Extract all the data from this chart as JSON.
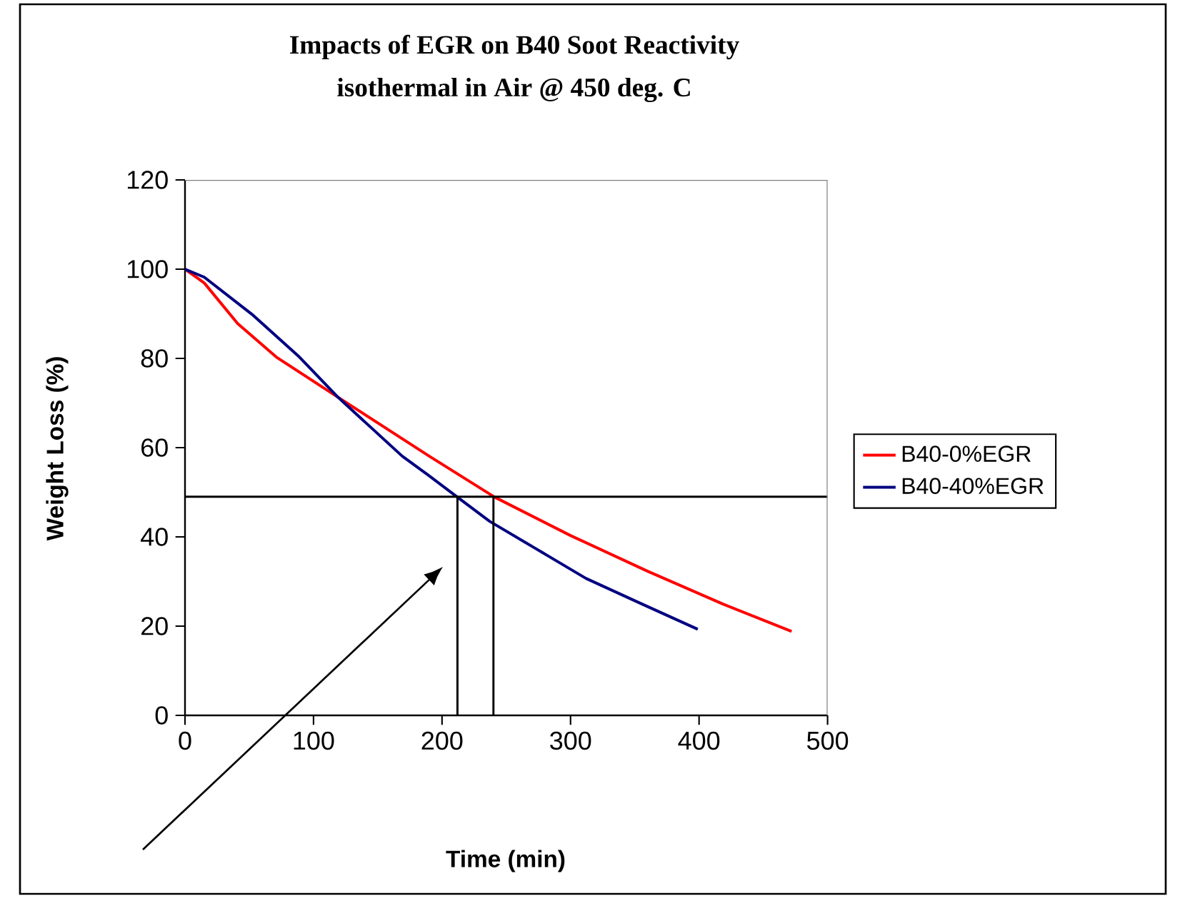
{
  "chart_data": {
    "type": "line",
    "title": "Impacts of EGR on B40 Soot Reactivity",
    "subtitle": "isothermal in Air @ 450 deg. C",
    "xlabel": "Time (min)",
    "ylabel": "Weight Loss (%)",
    "xlim": [
      0,
      500
    ],
    "xticks": [
      0,
      100,
      200,
      300,
      400,
      500
    ],
    "ylim": [
      0,
      120
    ],
    "yticks": [
      0,
      20,
      40,
      60,
      80,
      100,
      120
    ],
    "grid": false,
    "legend": "right",
    "marker": "none",
    "line_style": "solid",
    "series": [
      {
        "name": "B40-0%EGR",
        "color": "#ff0000",
        "x": [
          0,
          15,
          41,
          71,
          119,
          190,
          241,
          300,
          360,
          419,
          472
        ],
        "values": [
          100,
          96.9,
          87.8,
          80.3,
          71.3,
          58.1,
          48.9,
          40.3,
          32.3,
          24.9,
          18.8
        ]
      },
      {
        "name": "B40-40%EGR",
        "color": "#000080",
        "x": [
          0,
          15,
          52,
          89,
          119,
          169,
          189,
          212,
          237,
          271,
          312,
          356,
          399
        ],
        "values": [
          100,
          98.2,
          89.9,
          80.3,
          71.3,
          58.1,
          53.9,
          48.9,
          43.5,
          37.7,
          30.7,
          24.9,
          19.3
        ]
      }
    ],
    "ref_lines": [
      {
        "axis": "y",
        "value": 49,
        "color": "#000000"
      },
      {
        "axis": "x",
        "value": 212,
        "color": "#000000"
      },
      {
        "axis": "x",
        "value": 240,
        "color": "#000000"
      }
    ]
  }
}
